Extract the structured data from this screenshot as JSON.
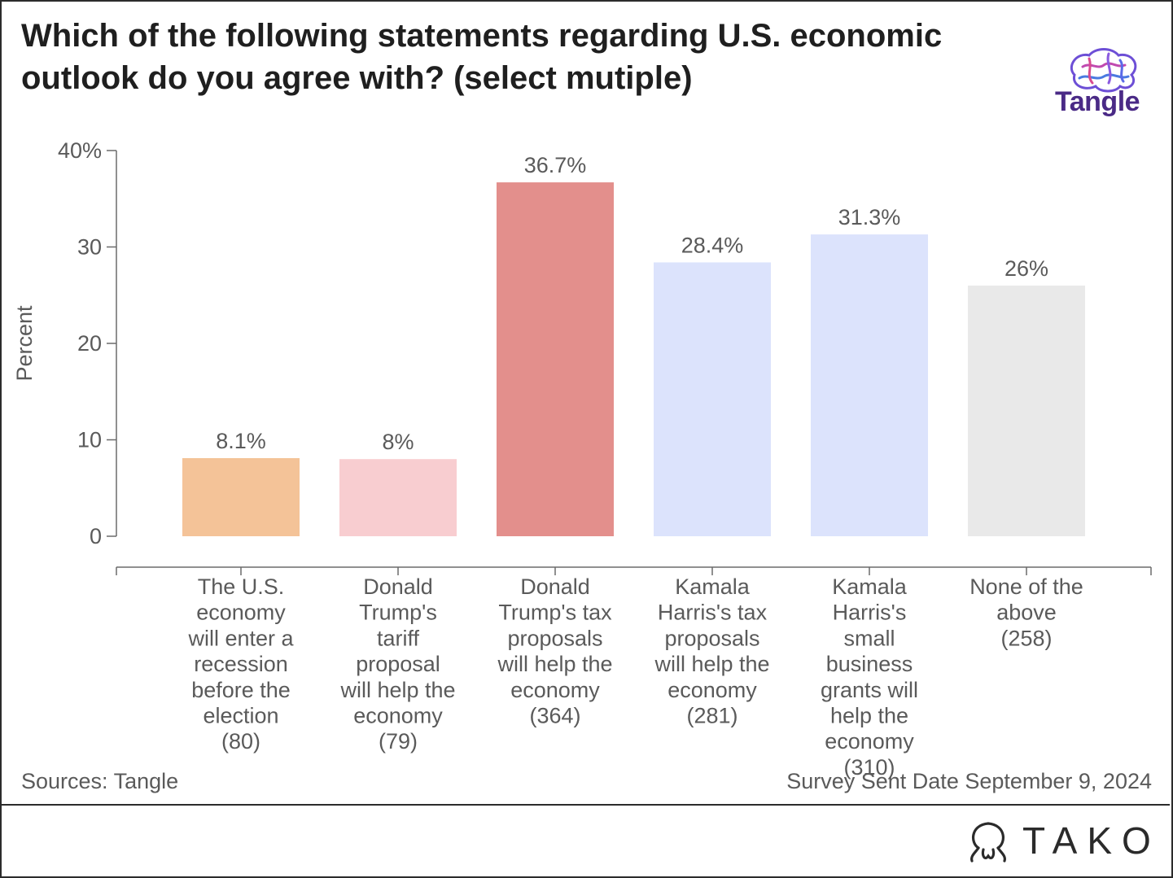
{
  "header": {
    "title": "Which of the following statements regarding U.S. economic outlook do you agree with? (select mutiple)",
    "logo_text": "Tangle"
  },
  "footer": {
    "source": "Sources: Tangle",
    "survey": "Survey Sent Date September 9, 2024",
    "brand": "TAKO"
  },
  "chart_data": {
    "type": "bar",
    "title": "Which of the following statements regarding U.S. economic outlook do you agree with? (select mutiple)",
    "ylabel": "Percent",
    "xlabel": "",
    "ylim": [
      0,
      40
    ],
    "yticks": [
      0,
      10,
      20,
      30,
      40
    ],
    "ytick_labels": [
      "0",
      "10",
      "20",
      "30",
      "40%"
    ],
    "grid": false,
    "categories": [
      [
        "The U.S.",
        "economy",
        "will enter a",
        "recession",
        "before the",
        "election",
        "(80)"
      ],
      [
        "Donald",
        "Trump's",
        "tariff",
        "proposal",
        "will help the",
        "economy",
        "(79)"
      ],
      [
        "Donald",
        "Trump's tax",
        "proposals",
        "will help the",
        "economy",
        "(364)"
      ],
      [
        "Kamala",
        "Harris's tax",
        "proposals",
        "will help the",
        "economy",
        "(281)"
      ],
      [
        "Kamala",
        "Harris's",
        "small",
        "business",
        "grants will",
        "help the",
        "economy",
        "(310)"
      ],
      [
        "None of the",
        "above",
        "(258)"
      ]
    ],
    "values": [
      8.1,
      8,
      36.7,
      28.4,
      31.3,
      26
    ],
    "value_labels": [
      "8.1%",
      "8%",
      "36.7%",
      "28.4%",
      "31.3%",
      "26%"
    ],
    "colors": [
      "#f4c398",
      "#f8cdd0",
      "#e38f8c",
      "#dce3fc",
      "#dce3fc",
      "#e9e9e9"
    ]
  }
}
